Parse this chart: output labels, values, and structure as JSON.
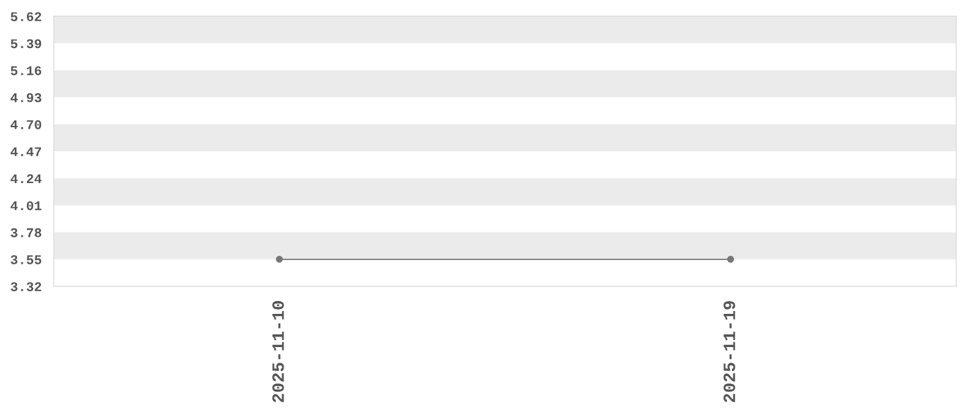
{
  "chart_data": {
    "type": "line",
    "categories": [
      "2025-11-10",
      "2025-11-19"
    ],
    "series": [
      {
        "color": "#777777",
        "values": [
          3.55,
          3.55
        ]
      }
    ],
    "ylim": [
      3.32,
      5.62
    ],
    "yticks": [
      3.32,
      3.55,
      3.78,
      4.01,
      4.24,
      4.47,
      {
        "value": 4.7,
        "label": "4.70"
      },
      4.93,
      5.16,
      5.39,
      5.62
    ],
    "bands": [
      {
        "axis": "y",
        "from": 3.55,
        "to": 3.78,
        "color": "#ebebeb"
      },
      {
        "axis": "y",
        "from": 4.01,
        "to": 4.24,
        "color": "#ebebeb"
      },
      {
        "axis": "y",
        "from": 4.47,
        "to": 4.7,
        "color": "#ebebeb"
      },
      {
        "axis": "y",
        "from": 4.93,
        "to": 5.16,
        "color": "#ebebeb"
      },
      {
        "axis": "y",
        "from": 5.39,
        "to": 5.62,
        "color": "#ebebeb"
      }
    ],
    "marker": "circle",
    "line_style": "solid",
    "grid": false
  }
}
